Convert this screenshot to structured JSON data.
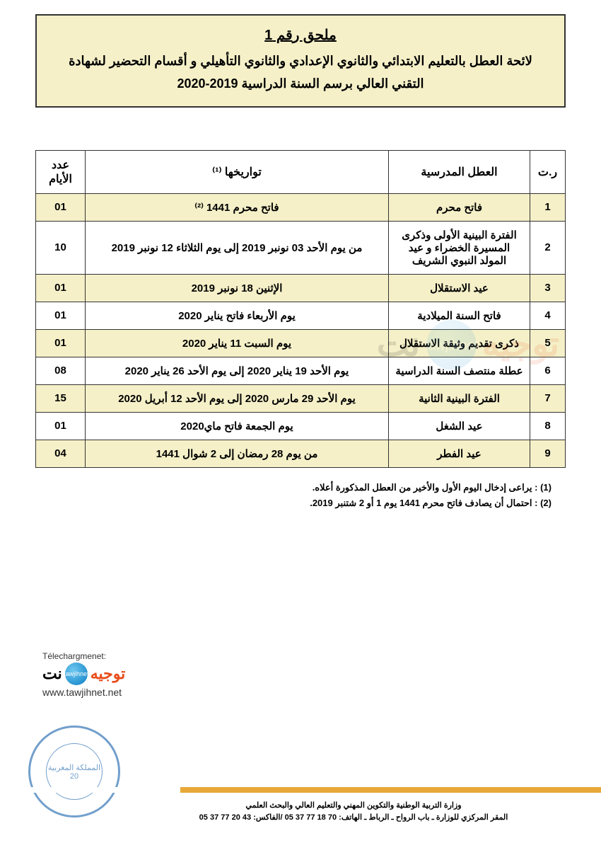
{
  "header": {
    "title": "ملحق رقم 1",
    "subtitle": "لائحة العطل بالتعليم الابتدائي والثانوي الإعدادي والثانوي التأهيلي و أقسام التحضير لشهادة التقني العالي برسم السنة الدراسية 2019-2020"
  },
  "table": {
    "columns": {
      "num": "ر.ت",
      "name": "العطل المدرسية",
      "dates": "تواريخها ⁽¹⁾",
      "days": "عدد الأيام"
    },
    "rows": [
      {
        "n": "1",
        "name": "فاتح محرم",
        "dates": "فاتح محرم 1441 ⁽²⁾",
        "days": "01",
        "hl": true
      },
      {
        "n": "2",
        "name": "الفترة البينية الأولى وذكرى المسيرة الخضراء و عيد المولد النبوي الشريف",
        "dates": "من يوم الأحد 03 نونبر 2019 إلى يوم الثلاثاء 12 نونبر 2019",
        "days": "10",
        "hl": false
      },
      {
        "n": "3",
        "name": "عيد الاستقلال",
        "dates": "الإثنين 18 نونبر 2019",
        "days": "01",
        "hl": true
      },
      {
        "n": "4",
        "name": "فاتح السنة الميلادية",
        "dates": "يوم الأربعاء فاتح يناير 2020",
        "days": "01",
        "hl": false
      },
      {
        "n": "5",
        "name": "ذكرى تقديم وثيقة الاستقلال",
        "dates": "يوم السبت 11 يناير 2020",
        "days": "01",
        "hl": true
      },
      {
        "n": "6",
        "name": "عطلة منتصف السنة الدراسية",
        "dates": "يوم الأحد 19 يناير 2020 إلى يوم الأحد 26 يناير 2020",
        "days": "08",
        "hl": false
      },
      {
        "n": "7",
        "name": "الفترة البينية الثانية",
        "dates": "يوم الأحد 29 مارس 2020 إلى يوم الأحد 12 أبريل 2020",
        "days": "15",
        "hl": true
      },
      {
        "n": "8",
        "name": "عيد الشغل",
        "dates": "يوم الجمعة فاتح ماي2020",
        "days": "01",
        "hl": false
      },
      {
        "n": "9",
        "name": "عيد الفطر",
        "dates": "من يوم 28 رمضان إلى 2 شوال 1441",
        "days": "04",
        "hl": true
      }
    ]
  },
  "notes": {
    "n1": "(1) :  يراعى إدخال اليوم الأول والأخير من العطل المذكورة أعلاه.",
    "n2": "(2) :  احتمال أن يصادف فاتح محرم 1441 يوم 1 أو 2 شتنبر 2019."
  },
  "watermark": {
    "download": "Télechargmenet:",
    "brand_ar": "توجيه",
    "brand_net": "نت",
    "circle_text": "tawjihnet",
    "url": "www.tawjihnet.net"
  },
  "stamp": {
    "outer_text": "المملكة المغربية",
    "page": "20"
  },
  "footer": {
    "line1": "وزارة التربية الوطنية والتكوين المهني والتعليم العالي والبحث العلمي",
    "line2": "المقر المركزي للوزارة ـ باب الرواح ـ الرباط ـ الهاتف: 70 18 77 37 05  /الفاكس: 43 20 77 37 05"
  },
  "colors": {
    "highlight_bg": "#f5f0c8",
    "border": "#333333",
    "brand_orange": "#e84c1a",
    "stamp_blue": "#5a8fc4",
    "footer_gold": "#e8a838"
  }
}
